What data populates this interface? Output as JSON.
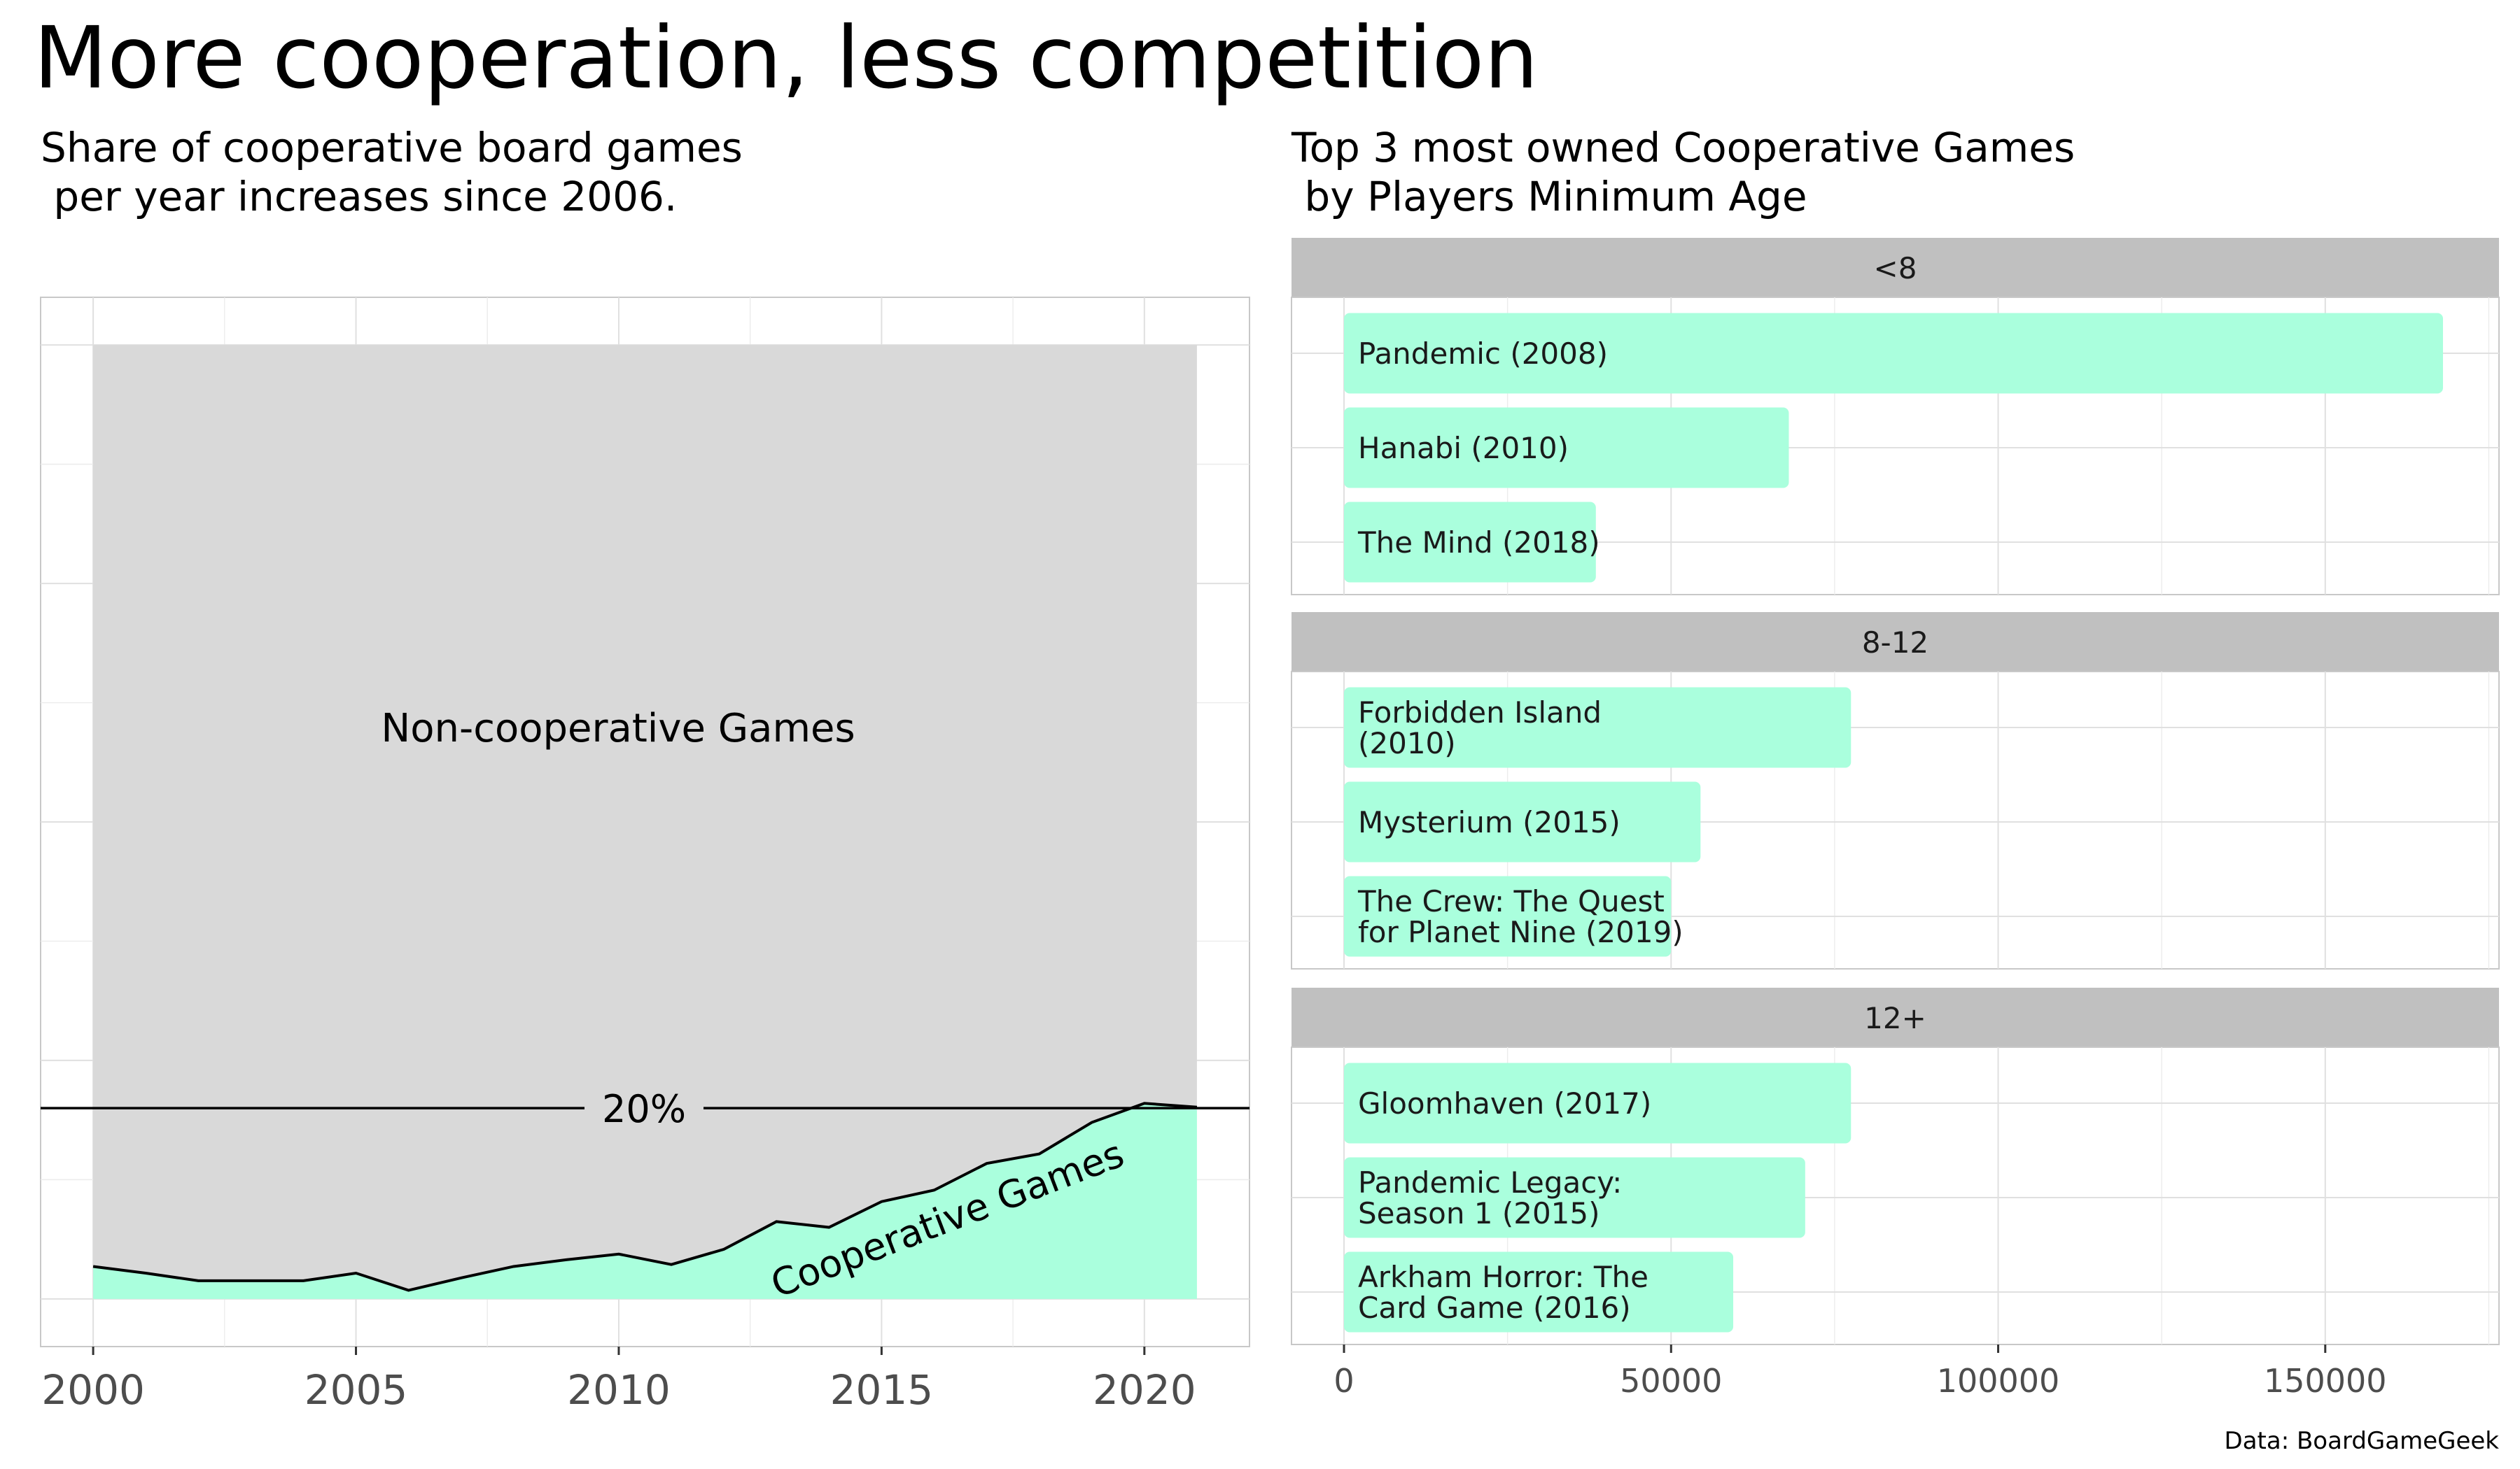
{
  "title": "More cooperation, less competition",
  "caption": "Data: BoardGameGeek",
  "chart_data": [
    {
      "type": "area",
      "subtitle": "Share of cooperative board games\n per year increases since 2006.",
      "x": [
        2000,
        2001,
        2002,
        2003,
        2004,
        2005,
        2006,
        2007,
        2008,
        2009,
        2010,
        2011,
        2012,
        2013,
        2014,
        2015,
        2016,
        2017,
        2018,
        2019,
        2020,
        2021
      ],
      "series": [
        {
          "name": "Cooperative Games",
          "values": [
            0.034,
            0.027,
            0.019,
            0.019,
            0.019,
            0.027,
            0.009,
            0.022,
            0.034,
            0.041,
            0.047,
            0.036,
            0.052,
            0.081,
            0.075,
            0.102,
            0.114,
            0.142,
            0.152,
            0.185,
            0.205,
            0.201
          ],
          "color": "#aaffdd"
        },
        {
          "name": "Non-cooperative Games",
          "values": [
            0.966,
            0.973,
            0.981,
            0.981,
            0.981,
            0.973,
            0.991,
            0.978,
            0.966,
            0.959,
            0.953,
            0.964,
            0.948,
            0.919,
            0.925,
            0.898,
            0.886,
            0.858,
            0.848,
            0.815,
            0.795,
            0.799
          ],
          "color": "#d9d9d9"
        }
      ],
      "reference_line": {
        "y": 0.2,
        "label": "20%"
      },
      "xticks": [
        "2000",
        "2005",
        "2010",
        "2015",
        "2020"
      ],
      "xlim": [
        1999,
        2022
      ],
      "ylim": [
        -0.05,
        1.05
      ],
      "grid": true
    },
    {
      "type": "bar",
      "orientation": "horizontal",
      "subtitle": "Top 3 most owned Cooperative Games\n by Players Minimum Age",
      "xticks": [
        "0",
        "50000",
        "100000",
        "150000"
      ],
      "xlim": [
        0,
        177000
      ],
      "bar_color": "#aaffdd",
      "grid": true,
      "facets": [
        {
          "label": "<8",
          "bars": [
            {
              "name": "Pandemic (2008)",
              "value": 168000
            },
            {
              "name": "Hanabi (2010)",
              "value": 68000
            },
            {
              "name": "The Mind (2018)",
              "value": 38500
            }
          ]
        },
        {
          "label": "8-12",
          "bars": [
            {
              "name": "Forbidden Island\n(2010)",
              "value": 77500
            },
            {
              "name": "Mysterium (2015)",
              "value": 54500
            },
            {
              "name": "The Crew: The Quest\nfor Planet Nine (2019)",
              "value": 50000
            }
          ]
        },
        {
          "label": "12+",
          "bars": [
            {
              "name": "Gloomhaven (2017)",
              "value": 77500
            },
            {
              "name": "Pandemic Legacy:\nSeason 1 (2015)",
              "value": 70500
            },
            {
              "name": "Arkham Horror: The\nCard Game (2016)",
              "value": 59500
            }
          ]
        }
      ]
    }
  ]
}
